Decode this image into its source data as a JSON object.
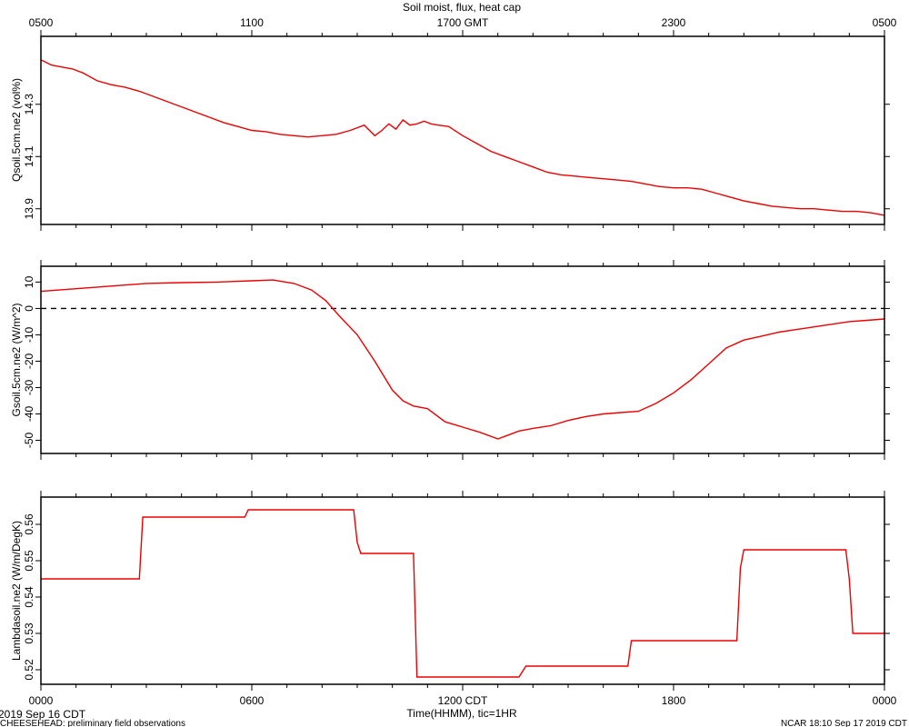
{
  "chart_data": [
    {
      "type": "line",
      "title": "Soil moist, flux, heat cap",
      "ylabel": "Qsoil.5cm.ne2 (vol%)",
      "ylim": [
        13.84,
        14.56
      ],
      "yticks": [
        13.9,
        14.1,
        14.3
      ],
      "ytick_labels": [
        "13.9",
        "14.1",
        "14.3"
      ],
      "top_axis": {
        "ticks_hours": [
          0,
          6,
          12,
          18,
          24
        ],
        "labels": [
          "0500",
          "1100",
          "1700 GMT",
          "2300",
          "0500"
        ]
      },
      "series": [
        {
          "color": "#ee0000",
          "x_hours": [
            0,
            0.3,
            0.5,
            0.9,
            1.2,
            1.6,
            2.0,
            2.4,
            2.8,
            3.2,
            3.6,
            4.0,
            4.4,
            4.8,
            5.2,
            5.6,
            6.0,
            6.4,
            6.8,
            7.2,
            7.6,
            8.0,
            8.4,
            8.8,
            9.2,
            9.5,
            9.7,
            9.9,
            10.1,
            10.3,
            10.5,
            10.7,
            10.9,
            11.1,
            11.3,
            11.6,
            12.0,
            12.4,
            12.8,
            13.2,
            13.6,
            14.0,
            14.4,
            14.8,
            15.2,
            15.6,
            16.0,
            16.4,
            16.8,
            17.2,
            17.6,
            18.0,
            18.4,
            18.8,
            19.2,
            19.6,
            20.0,
            20.4,
            20.8,
            21.2,
            21.6,
            22.0,
            22.4,
            22.8,
            23.2,
            23.6,
            24.0
          ],
          "values": [
            14.47,
            14.45,
            14.445,
            14.435,
            14.42,
            14.39,
            14.375,
            14.365,
            14.35,
            14.33,
            14.31,
            14.29,
            14.27,
            14.25,
            14.23,
            14.215,
            14.2,
            14.195,
            14.185,
            14.18,
            14.175,
            14.18,
            14.185,
            14.2,
            14.22,
            14.18,
            14.2,
            14.225,
            14.205,
            14.24,
            14.22,
            14.225,
            14.235,
            14.225,
            14.22,
            14.215,
            14.18,
            14.15,
            14.12,
            14.1,
            14.08,
            14.06,
            14.04,
            14.03,
            14.025,
            14.02,
            14.015,
            14.01,
            14.005,
            13.995,
            13.985,
            13.98,
            13.98,
            13.975,
            13.96,
            13.945,
            13.93,
            13.92,
            13.91,
            13.905,
            13.9,
            13.9,
            13.895,
            13.89,
            13.89,
            13.885,
            13.875
          ]
        }
      ]
    },
    {
      "type": "line",
      "ylabel": "Gsoil.5cm.ne2 (W/m^2)",
      "ylim": [
        -55,
        16
      ],
      "yticks": [
        -50,
        -40,
        -30,
        -20,
        -10,
        0,
        10
      ],
      "ytick_labels": [
        "-50",
        "-40",
        "-30",
        "-20",
        "-10",
        "0",
        "10"
      ],
      "reference_line": {
        "y": 0,
        "style": "dashed"
      },
      "series": [
        {
          "color": "#ee0000",
          "x_hours": [
            0,
            1,
            2,
            3,
            4,
            5,
            6,
            6.6,
            7.2,
            7.7,
            8.1,
            8.5,
            9.0,
            9.5,
            10.0,
            10.3,
            10.6,
            11.0,
            11.5,
            12.0,
            12.5,
            13.0,
            13.3,
            13.6,
            14.0,
            14.5,
            15.0,
            15.5,
            16.0,
            16.5,
            17.0,
            17.5,
            18.0,
            18.5,
            19.0,
            19.5,
            20.0,
            20.5,
            21.0,
            21.5,
            22.0,
            22.5,
            23.0,
            23.5,
            24.0
          ],
          "values": [
            6.5,
            7.5,
            8.5,
            9.5,
            9.8,
            10,
            10.5,
            10.8,
            9.5,
            7,
            3,
            -3,
            -10,
            -20,
            -31,
            -35,
            -37,
            -38,
            -43,
            -45,
            -47,
            -49.5,
            -48,
            -46.5,
            -45.5,
            -44.5,
            -42.5,
            -41,
            -40,
            -39.5,
            -39,
            -36,
            -32,
            -27,
            -21,
            -15,
            -12,
            -10.5,
            -9,
            -8,
            -7,
            -6,
            -5,
            -4.5,
            -4
          ]
        }
      ]
    },
    {
      "type": "line",
      "ylabel": "Lambdasoil.ne2 (W/m/DegK)",
      "ylim": [
        0.516,
        0.5675
      ],
      "yticks": [
        0.52,
        0.53,
        0.54,
        0.55,
        0.56
      ],
      "ytick_labels": [
        "0.52",
        "0.53",
        "0.54",
        "0.55",
        "0.56"
      ],
      "bottom_axis": {
        "ticks_hours": [
          0,
          6,
          12,
          18,
          24
        ],
        "labels": [
          "0000",
          "0600",
          "1200 CDT",
          "1800",
          "0000"
        ],
        "xlabel": "Time(HHMM), tic=1HR"
      },
      "series": [
        {
          "color": "#ee0000",
          "x_hours": [
            0,
            2.8,
            2.9,
            5.8,
            5.9,
            8.9,
            9.0,
            9.1,
            10.6,
            10.7,
            13.6,
            13.8,
            16.7,
            16.8,
            19.8,
            19.9,
            20.0,
            22.9,
            23.0,
            23.1,
            24.0
          ],
          "values": [
            0.545,
            0.545,
            0.562,
            0.562,
            0.564,
            0.564,
            0.555,
            0.552,
            0.552,
            0.518,
            0.518,
            0.521,
            0.521,
            0.528,
            0.528,
            0.548,
            0.553,
            0.553,
            0.545,
            0.53,
            0.53
          ]
        }
      ]
    }
  ],
  "footer": {
    "date_left": "2019 Sep 16 CDT",
    "project": "CHEESEHEAD: preliminary field observations",
    "credit": "NCAR 18:10 Sep 17 2019 CDT"
  }
}
